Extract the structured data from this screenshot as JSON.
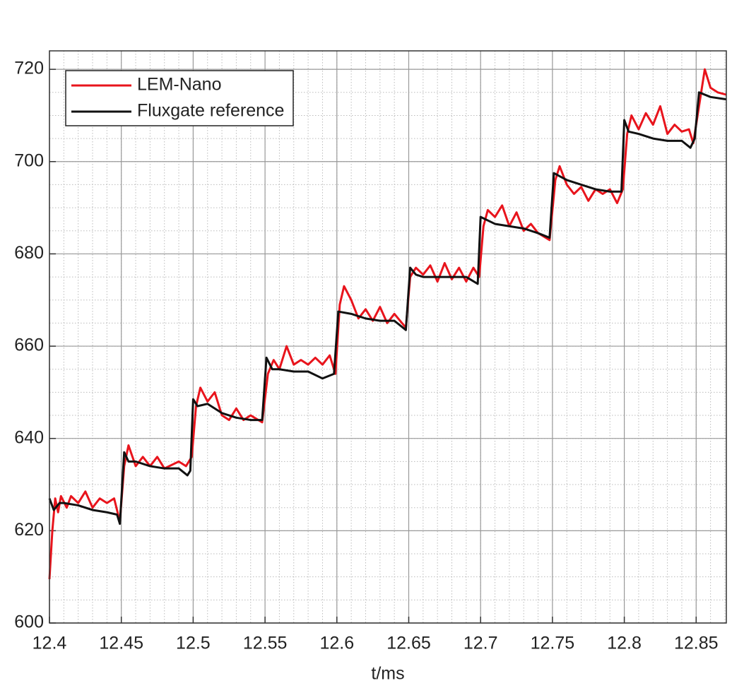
{
  "chart_data": {
    "type": "line",
    "xlabel": "t/ms",
    "xlim": [
      12.4,
      12.871
    ],
    "ylim": [
      600,
      724
    ],
    "xticks": [
      12.4,
      12.45,
      12.5,
      12.55,
      12.6,
      12.65,
      12.7,
      12.75,
      12.8,
      12.85
    ],
    "yticks": [
      600,
      620,
      640,
      660,
      680,
      700,
      720
    ],
    "grid": true,
    "minor_grid": true,
    "legend": "upper left",
    "series": [
      {
        "name": "LEM-Nano",
        "color": "#e8141c",
        "x": [
          12.4,
          12.402,
          12.404,
          12.406,
          12.408,
          12.412,
          12.415,
          12.42,
          12.425,
          12.43,
          12.435,
          12.44,
          12.445,
          12.449,
          12.452,
          12.455,
          12.46,
          12.465,
          12.47,
          12.475,
          12.48,
          12.49,
          12.495,
          12.499,
          12.502,
          12.505,
          12.51,
          12.515,
          12.52,
          12.525,
          12.53,
          12.535,
          12.54,
          12.548,
          12.552,
          12.556,
          12.56,
          12.565,
          12.57,
          12.575,
          12.58,
          12.585,
          12.59,
          12.595,
          12.599,
          12.602,
          12.605,
          12.61,
          12.615,
          12.62,
          12.625,
          12.63,
          12.635,
          12.64,
          12.648,
          12.651,
          12.655,
          12.66,
          12.665,
          12.67,
          12.675,
          12.68,
          12.685,
          12.69,
          12.695,
          12.699,
          12.702,
          12.705,
          12.71,
          12.715,
          12.72,
          12.725,
          12.73,
          12.735,
          12.74,
          12.748,
          12.752,
          12.755,
          12.76,
          12.765,
          12.77,
          12.775,
          12.78,
          12.785,
          12.79,
          12.795,
          12.799,
          12.802,
          12.805,
          12.81,
          12.815,
          12.82,
          12.825,
          12.83,
          12.835,
          12.84,
          12.845,
          12.848,
          12.852,
          12.856,
          12.86,
          12.865,
          12.871
        ],
        "values": [
          609.5,
          620,
          627,
          624,
          627.5,
          625,
          627.5,
          626,
          628.5,
          625,
          627,
          626,
          627,
          622,
          634,
          638.5,
          634,
          636,
          634,
          636,
          633.5,
          635,
          634,
          636,
          647,
          651,
          648,
          650,
          645,
          644,
          646.5,
          644,
          645,
          643.5,
          654,
          657,
          655,
          660,
          656,
          657,
          656,
          657.5,
          656,
          658,
          654,
          669,
          673,
          670,
          666,
          668,
          665.5,
          668.5,
          665,
          667,
          664,
          675,
          677,
          675.5,
          677.5,
          674,
          678,
          674.5,
          677,
          674,
          677,
          675,
          686,
          689.5,
          688,
          690.5,
          686,
          689,
          685,
          686.5,
          684.5,
          683,
          696,
          699,
          695,
          693,
          694.5,
          691.5,
          694,
          693,
          694,
          691,
          694,
          706,
          710,
          707,
          710.5,
          708,
          712,
          706,
          708,
          706.5,
          707,
          704,
          712,
          720,
          716,
          715,
          714.5
        ]
      },
      {
        "name": "Fluxgate reference",
        "color": "#111111",
        "x": [
          12.4,
          12.403,
          12.407,
          12.41,
          12.42,
          12.43,
          12.44,
          12.447,
          12.449,
          12.452,
          12.455,
          12.46,
          12.47,
          12.48,
          12.49,
          12.496,
          12.498,
          12.5,
          12.503,
          12.51,
          12.52,
          12.53,
          12.54,
          12.548,
          12.551,
          12.555,
          12.56,
          12.57,
          12.58,
          12.59,
          12.598,
          12.601,
          12.61,
          12.62,
          12.63,
          12.64,
          12.648,
          12.651,
          12.655,
          12.66,
          12.67,
          12.68,
          12.69,
          12.698,
          12.7,
          12.71,
          12.72,
          12.73,
          12.74,
          12.748,
          12.751,
          12.76,
          12.77,
          12.78,
          12.79,
          12.798,
          12.8,
          12.803,
          12.81,
          12.82,
          12.83,
          12.84,
          12.846,
          12.849,
          12.852,
          12.86,
          12.871
        ],
        "values": [
          627,
          624.5,
          626,
          626,
          625.5,
          624.5,
          624,
          623.5,
          621.5,
          637,
          635,
          635,
          634,
          633.5,
          633.5,
          632,
          633,
          648.5,
          647,
          647.5,
          645.5,
          644.5,
          644,
          644,
          657.5,
          655,
          655,
          654.5,
          654.5,
          653,
          654,
          667.5,
          667,
          666,
          665.5,
          665.5,
          663.5,
          677,
          675.5,
          675,
          675,
          675,
          675,
          673.5,
          688,
          686.5,
          686,
          685.5,
          684.5,
          683.5,
          697.5,
          696,
          695,
          694,
          693.5,
          693.5,
          709,
          706.5,
          706,
          705,
          704.5,
          704.5,
          703,
          705,
          715,
          714,
          713.5
        ]
      }
    ]
  }
}
